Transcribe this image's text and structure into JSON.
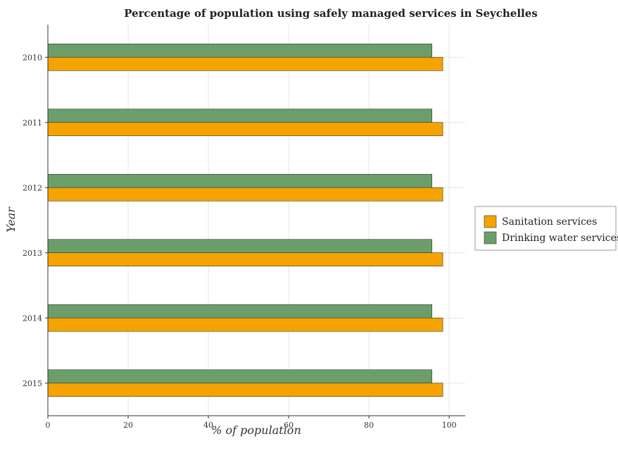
{
  "chart_data": {
    "type": "bar",
    "orientation": "horizontal",
    "title": "Percentage of population using safely managed services in Seychelles",
    "xlabel": "% of population",
    "ylabel": "Year",
    "categories": [
      "2010",
      "2011",
      "2012",
      "2013",
      "2014",
      "2015"
    ],
    "series": [
      {
        "name": "Sanitation services",
        "color": "#f5a300",
        "values": [
          98.4,
          98.4,
          98.4,
          98.4,
          98.4,
          98.4
        ]
      },
      {
        "name": "Drinking water services",
        "color": "#6b9e6b",
        "values": [
          95.7,
          95.7,
          95.7,
          95.7,
          95.7,
          95.7
        ]
      }
    ],
    "xlim": [
      0,
      104
    ],
    "xticks": [
      0,
      20,
      40,
      60,
      80,
      100
    ],
    "grid": true,
    "legend_position": "right"
  }
}
